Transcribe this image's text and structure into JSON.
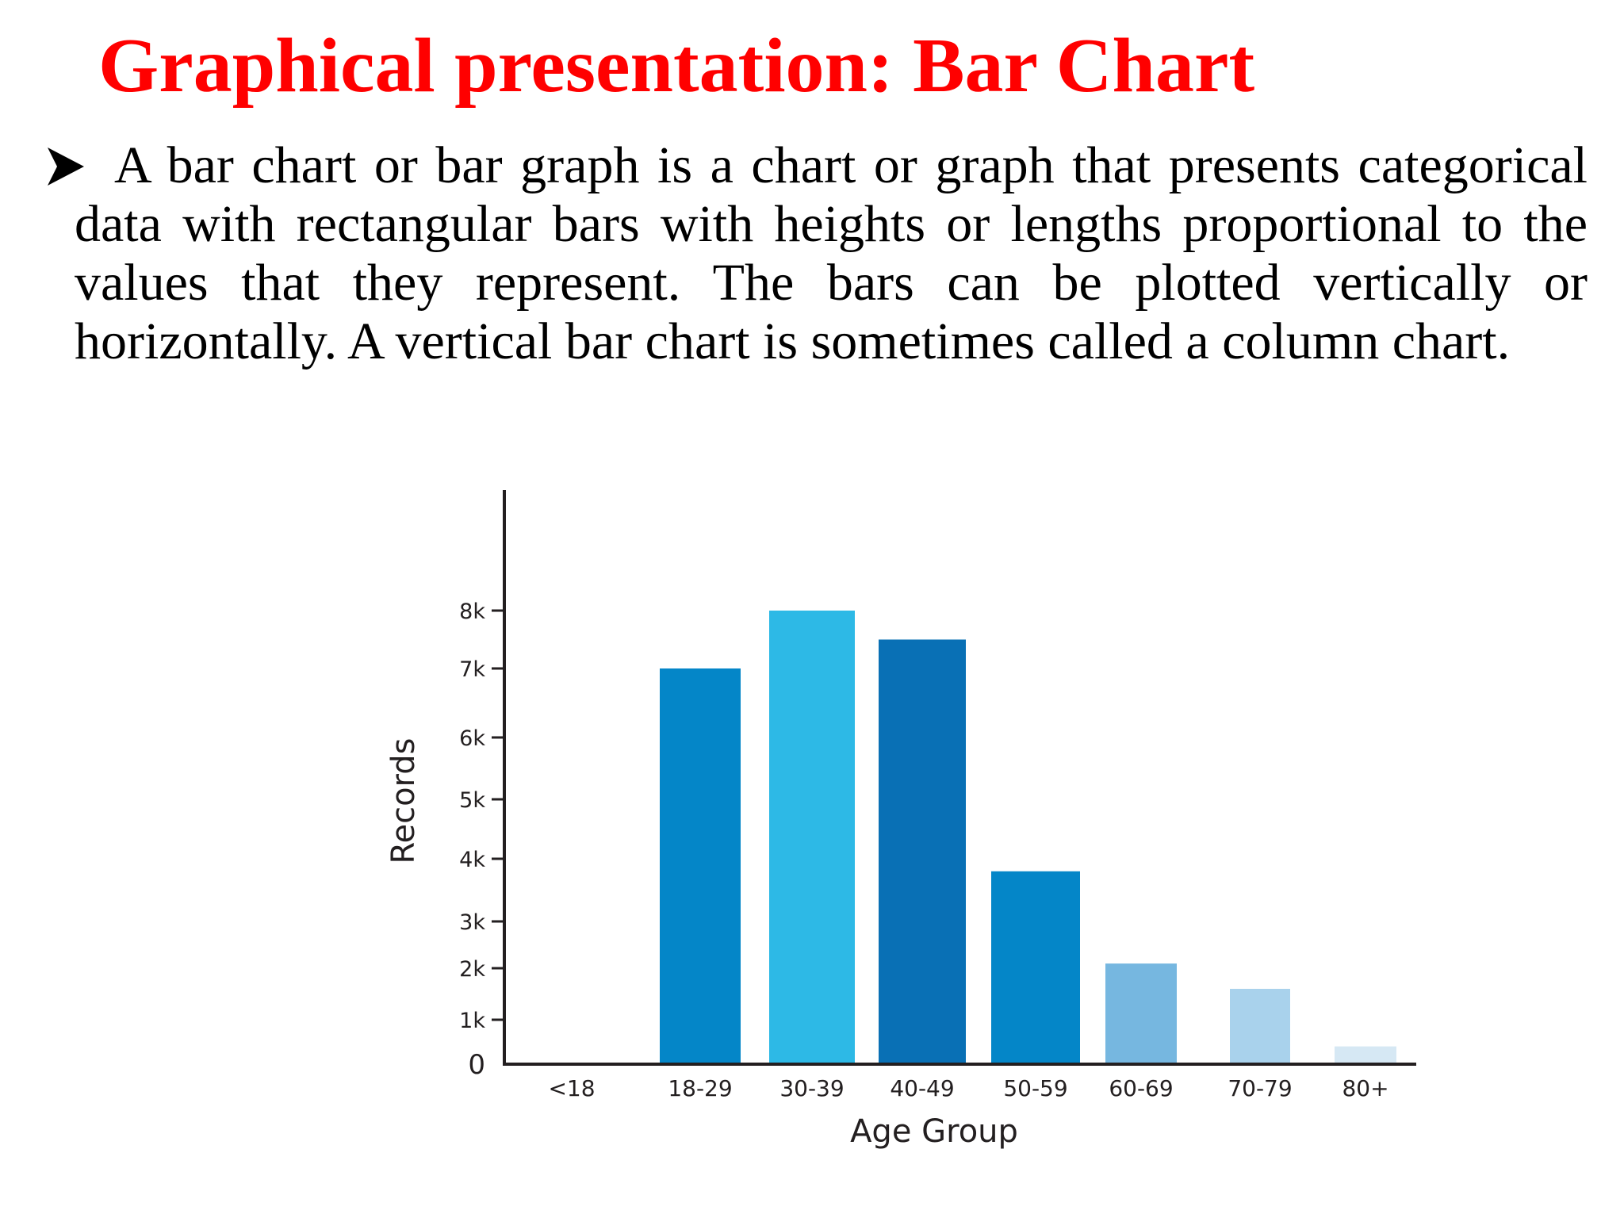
{
  "slide": {
    "title": "Graphical presentation: Bar Chart",
    "bullet_icon": "arrowhead-bullet-icon",
    "bullet_text": "A bar chart or bar graph is a chart or graph that presents categorical data with rectangular bars with heights or lengths proportional to the values that they represent. The bars can be plotted vertically or horizontally. A vertical bar chart is sometimes called a column chart."
  },
  "chart_data": {
    "type": "bar",
    "title": "",
    "xlabel": "Age Group",
    "ylabel": "Records",
    "categories": [
      "<18",
      "18-29",
      "30-39",
      "40-49",
      "50-59",
      "60-69",
      "70-79",
      "80+"
    ],
    "values": [
      0,
      7000,
      8000,
      7500,
      3800,
      2100,
      1600,
      400
    ],
    "bar_colors": [
      "#0486c8",
      "#0486c8",
      "#2db9e6",
      "#0970b5",
      "#0486c8",
      "#76b7e0",
      "#a9d2ec",
      "#d6e8f4"
    ],
    "yticks": [
      {
        "value": 0,
        "label": "0"
      },
      {
        "value": 1000,
        "label": "1k"
      },
      {
        "value": 2000,
        "label": "2k"
      },
      {
        "value": 3000,
        "label": "3k"
      },
      {
        "value": 4000,
        "label": "4k"
      },
      {
        "value": 5000,
        "label": "5k"
      },
      {
        "value": 6000,
        "label": "6k"
      },
      {
        "value": 7000,
        "label": "7k"
      },
      {
        "value": 8000,
        "label": "8k"
      }
    ],
    "ylim": [
      0,
      10000
    ],
    "grid": false,
    "legend": "none"
  }
}
